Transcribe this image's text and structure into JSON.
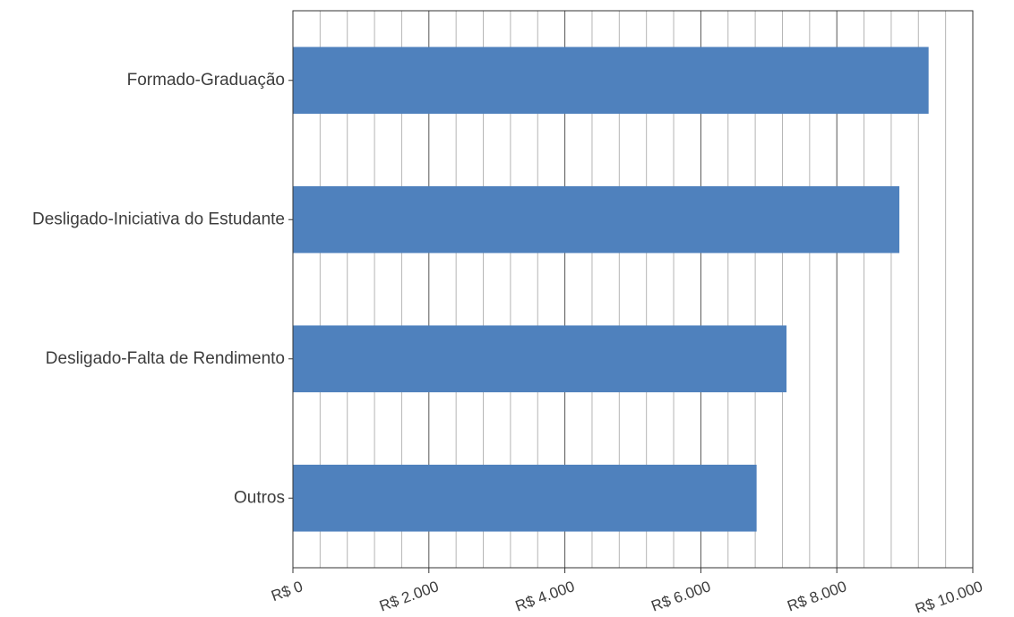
{
  "chart_data": {
    "type": "bar",
    "orientation": "horizontal",
    "title": "",
    "xlabel": "",
    "ylabel": "",
    "categories": [
      "Formado-Graduação",
      "Desligado-Iniciativa do Estudante",
      "Desligado-Falta de Rendimento",
      "Outros"
    ],
    "values": [
      9350,
      8920,
      7260,
      6820
    ],
    "xlim": [
      0,
      10000
    ],
    "xticks": [
      0,
      2000,
      4000,
      6000,
      8000,
      10000
    ],
    "xtick_labels": [
      "R$ 0",
      "R$ 2.000",
      "R$ 4.000",
      "R$ 6.000",
      "R$ 8.000",
      "R$ 10.000"
    ],
    "minor_grid_step": 400,
    "grid": true,
    "legend": "none",
    "colors": {
      "bar": "#4f81bd",
      "major_grid": "#555555",
      "minor_grid": "#b5b5b5",
      "axis": "#333333",
      "text": "#3d3d3d"
    }
  }
}
